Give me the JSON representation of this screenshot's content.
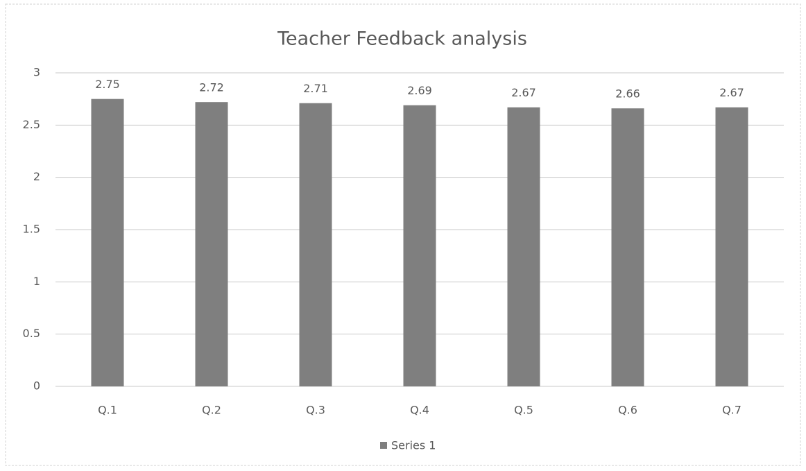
{
  "chart_data": {
    "type": "bar",
    "title": "Teacher Feedback analysis",
    "categories": [
      "Q.1",
      "Q.2",
      "Q.3",
      "Q.4",
      "Q.5",
      "Q.6",
      "Q.7"
    ],
    "series": [
      {
        "name": "Series 1",
        "color": "#7f7f7f",
        "values": [
          2.75,
          2.72,
          2.71,
          2.69,
          2.67,
          2.66,
          2.67
        ]
      }
    ],
    "ylim": [
      0,
      3
    ],
    "yticks": [
      0,
      0.5,
      1,
      1.5,
      2,
      2.5,
      3
    ],
    "grid": true,
    "data_labels": true,
    "legend": "bottom"
  }
}
